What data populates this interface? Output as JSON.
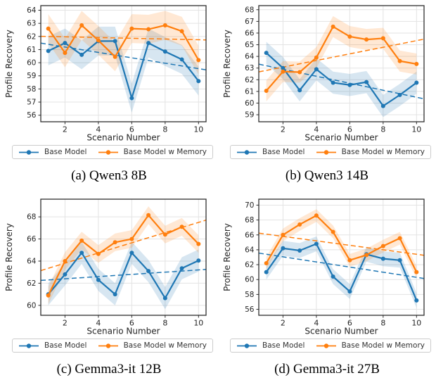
{
  "page": {
    "background": "#ffffff"
  },
  "legend": {
    "base_model": "Base Model",
    "base_model_w_memory": "Base Model w Memory"
  },
  "colors": {
    "base": "#1f77b4",
    "memory": "#ff7f0e",
    "grid": "#e3e3e3",
    "frame": "#2e2e2e",
    "text": "#262626",
    "legend_border": "#cccccc",
    "band_opacity": 0.18
  },
  "chart_data": [
    {
      "type": "line",
      "caption": "(a) Qwen3 8B",
      "xlabel": "Scenario Number",
      "ylabel": "Profile Recovery",
      "x": [
        1,
        2,
        3,
        4,
        5,
        6,
        7,
        8,
        9,
        10
      ],
      "xticks": [
        2,
        4,
        6,
        8,
        10
      ],
      "yticks": [
        56,
        57,
        58,
        59,
        60,
        61,
        62,
        63,
        64
      ],
      "xlim": [
        0.55,
        10.45
      ],
      "ylim": [
        55.5,
        64.35
      ],
      "grid": true,
      "legend_position": "below",
      "series": [
        {
          "name": "Base Model",
          "color_key": "base",
          "values": [
            60.9,
            61.5,
            60.6,
            61.65,
            61.65,
            57.3,
            61.5,
            60.85,
            60.25,
            58.6
          ],
          "band": 1.1,
          "trend": [
            61.4,
            59.55
          ]
        },
        {
          "name": "Base Model w Memory",
          "color_key": "memory",
          "values": [
            62.6,
            60.75,
            62.85,
            61.7,
            60.45,
            62.6,
            62.55,
            62.85,
            62.4,
            60.2
          ],
          "band": 1.1,
          "trend": [
            62.0,
            61.75
          ]
        }
      ]
    },
    {
      "type": "line",
      "caption": "(b) Qwen3 14B",
      "xlabel": "Scenario Number",
      "ylabel": "Profile Recovery",
      "x": [
        1,
        2,
        3,
        4,
        5,
        6,
        7,
        8,
        9,
        10
      ],
      "xticks": [
        2,
        4,
        6,
        8,
        10
      ],
      "yticks": [
        59,
        60,
        61,
        62,
        63,
        64,
        65,
        66,
        67,
        68
      ],
      "xlim": [
        0.55,
        10.45
      ],
      "ylim": [
        58.4,
        68.35
      ],
      "grid": true,
      "legend_position": "below",
      "series": [
        {
          "name": "Base Model",
          "color_key": "base",
          "values": [
            64.3,
            63.0,
            61.1,
            62.9,
            61.75,
            61.55,
            61.8,
            59.75,
            60.7,
            61.75
          ],
          "band": 0.95,
          "trend": [
            63.2,
            60.5
          ]
        },
        {
          "name": "Base Model w Memory",
          "color_key": "memory",
          "values": [
            61.05,
            62.7,
            62.65,
            63.9,
            66.55,
            65.7,
            65.45,
            65.55,
            63.6,
            63.35
          ],
          "band": 0.9,
          "trend": [
            62.8,
            65.35
          ]
        }
      ]
    },
    {
      "type": "line",
      "caption": "(c) Gemma3-it 12B",
      "xlabel": "Scenario Number",
      "ylabel": "Profile Recovery",
      "x": [
        1,
        2,
        3,
        4,
        5,
        6,
        7,
        8,
        9,
        10
      ],
      "xticks": [
        2,
        4,
        6,
        8,
        10
      ],
      "yticks": [
        60,
        62,
        64,
        66,
        68
      ],
      "xlim": [
        0.55,
        10.45
      ],
      "ylim": [
        59.1,
        69.6
      ],
      "grid": true,
      "legend_position": "below",
      "series": [
        {
          "name": "Base Model",
          "color_key": "base",
          "values": [
            61.0,
            62.8,
            64.75,
            62.3,
            61.0,
            64.75,
            63.1,
            60.65,
            63.35,
            64.05
          ],
          "band": 1.0,
          "trend": [
            62.3,
            63.2
          ]
        },
        {
          "name": "Base Model w Memory",
          "color_key": "memory",
          "values": [
            60.9,
            64.0,
            65.85,
            64.65,
            65.7,
            66.0,
            68.15,
            66.4,
            67.1,
            65.55
          ],
          "band": 0.8,
          "trend": [
            63.35,
            67.5
          ]
        }
      ]
    },
    {
      "type": "line",
      "caption": "(d) Gemma3-it 27B",
      "xlabel": "Scenario Number",
      "ylabel": "Profile Recovery",
      "x": [
        1,
        2,
        3,
        4,
        5,
        6,
        7,
        8,
        9,
        10
      ],
      "xticks": [
        2,
        4,
        6,
        8,
        10
      ],
      "yticks": [
        56,
        58,
        60,
        62,
        64,
        66,
        68,
        70
      ],
      "xlim": [
        0.55,
        10.45
      ],
      "ylim": [
        55.2,
        70.8
      ],
      "grid": true,
      "legend_position": "below",
      "series": [
        {
          "name": "Base Model",
          "color_key": "base",
          "values": [
            61.0,
            64.2,
            63.9,
            64.8,
            60.4,
            58.4,
            63.4,
            62.8,
            62.6,
            57.2
          ],
          "band": 1.0,
          "trend": [
            63.4,
            60.3
          ]
        },
        {
          "name": "Base Model w Memory",
          "color_key": "memory",
          "values": [
            62.2,
            66.0,
            67.4,
            68.6,
            66.4,
            62.6,
            63.3,
            64.5,
            65.55,
            61.0
          ],
          "band": 0.85,
          "trend": [
            66.1,
            63.4
          ]
        }
      ]
    }
  ]
}
